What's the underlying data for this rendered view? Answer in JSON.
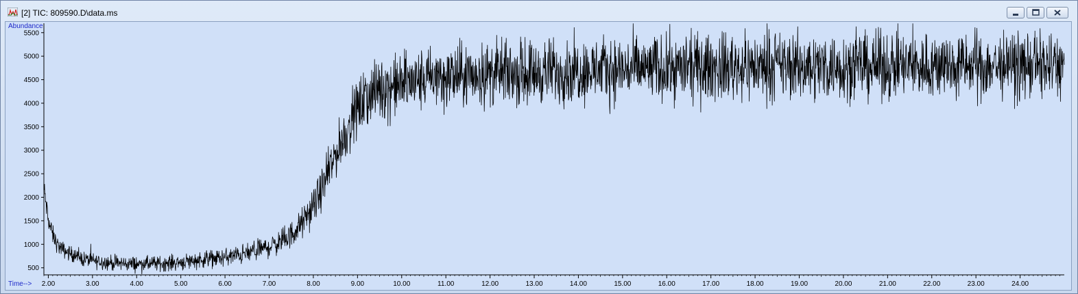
{
  "window": {
    "title": "[2] TIC: 809590.D\\data.ms",
    "app_icon": "chromatogram-app-icon",
    "controls": [
      "minimize-icon",
      "maximize-icon",
      "close-icon"
    ]
  },
  "colors": {
    "plot_background": "#d0e0f8",
    "axis_label": "#1d28c8",
    "trace": "#000000"
  },
  "chart_data": {
    "type": "line",
    "title": "",
    "xlabel": "Time-->",
    "ylabel": "Abundance",
    "xlim": [
      1.9,
      25.0
    ],
    "ylim": [
      350,
      5700
    ],
    "x_ticks": [
      2.0,
      3.0,
      4.0,
      5.0,
      6.0,
      7.0,
      8.0,
      9.0,
      10.0,
      11.0,
      12.0,
      13.0,
      14.0,
      15.0,
      16.0,
      17.0,
      18.0,
      19.0,
      20.0,
      21.0,
      22.0,
      23.0,
      24.0
    ],
    "x_tick_labels": [
      "2.00",
      "3.00",
      "4.00",
      "5.00",
      "6.00",
      "7.00",
      "8.00",
      "9.00",
      "10.00",
      "11.00",
      "12.00",
      "13.00",
      "14.00",
      "15.00",
      "16.00",
      "17.00",
      "18.00",
      "19.00",
      "20.00",
      "21.00",
      "22.00",
      "23.00",
      "24.00"
    ],
    "y_ticks": [
      500,
      1000,
      1500,
      2000,
      2500,
      3000,
      3500,
      4000,
      4500,
      5000,
      5500
    ],
    "y_tick_labels": [
      "500",
      "1000",
      "1500",
      "2000",
      "2500",
      "3000",
      "3500",
      "4000",
      "4500",
      "5000",
      "5500"
    ],
    "grid": false,
    "legend": "none",
    "series": [
      {
        "trace": "TIC",
        "x": [
          1.9,
          2.0,
          2.1,
          2.2,
          2.3,
          2.5,
          2.75,
          3.0,
          3.5,
          4.0,
          4.5,
          5.0,
          5.5,
          6.0,
          6.5,
          7.0,
          7.25,
          7.5,
          7.75,
          8.0,
          8.25,
          8.5,
          8.75,
          9.0,
          9.25,
          9.5,
          10.0,
          10.5,
          11.0,
          12.0,
          13.0,
          14.0,
          15.0,
          16.0,
          17.0,
          18.0,
          19.0,
          20.0,
          21.0,
          22.0,
          23.0,
          24.0,
          25.0
        ],
        "y": [
          2200,
          1500,
          1200,
          1000,
          900,
          800,
          700,
          650,
          600,
          580,
          590,
          620,
          680,
          720,
          800,
          950,
          1050,
          1200,
          1450,
          1800,
          2300,
          2900,
          3400,
          3900,
          4150,
          4300,
          4400,
          4500,
          4550,
          4620,
          4660,
          4700,
          4720,
          4740,
          4760,
          4780,
          4780,
          4790,
          4780,
          4790,
          4790,
          4800,
          4800
        ],
        "noise_amplitude": [
          120,
          110,
          100,
          90,
          85,
          80,
          80,
          80,
          80,
          80,
          80,
          85,
          90,
          95,
          105,
          115,
          125,
          140,
          160,
          180,
          220,
          250,
          280,
          300,
          320,
          330,
          330,
          330,
          340,
          340,
          340,
          340,
          345,
          345,
          350,
          350,
          350,
          350,
          350,
          350,
          350,
          350,
          350
        ]
      }
    ]
  }
}
